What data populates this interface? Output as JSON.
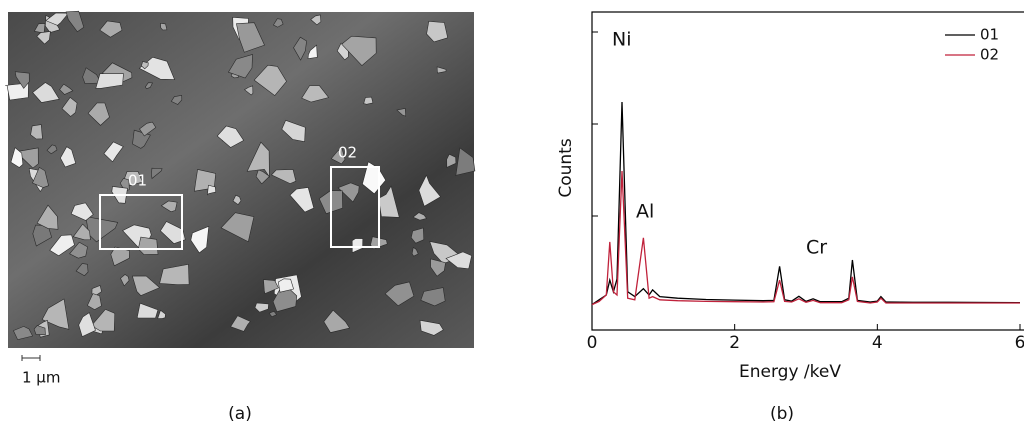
{
  "figure": {
    "panel_a": {
      "regions": [
        "01",
        "02"
      ],
      "scale_bar": "1 μm",
      "caption": "(a)"
    },
    "panel_b": {
      "caption": "(b)"
    }
  },
  "chart_data": {
    "type": "line",
    "xlabel": "Energy /keV",
    "ylabel": "Counts",
    "annotations": [
      "Ni",
      "Al",
      "Cr"
    ],
    "x": [
      0,
      0.1,
      0.2,
      0.25,
      0.3,
      0.35,
      0.42,
      0.5,
      0.6,
      0.72,
      0.8,
      0.85,
      0.95,
      1.2,
      1.6,
      2.0,
      2.4,
      2.55,
      2.63,
      2.7,
      2.8,
      2.9,
      3.0,
      3.1,
      3.2,
      3.5,
      3.6,
      3.65,
      3.72,
      3.9,
      4.0,
      4.05,
      4.12,
      4.5,
      5.0,
      6.0
    ],
    "series": [
      {
        "name": "01",
        "color": "#000000",
        "values": [
          8,
          9.5,
          11,
          15.7,
          12,
          16,
          71.7,
          12,
          10.5,
          13,
          11,
          12.6,
          10.5,
          10,
          9.6,
          9.4,
          9.2,
          9.3,
          20,
          9.5,
          9.1,
          10.6,
          9,
          9.8,
          8.9,
          8.9,
          10,
          22,
          9.3,
          8.8,
          9.1,
          10.5,
          8.8,
          8.7,
          8.7,
          8.6
        ]
      },
      {
        "name": "02",
        "color": "#c0223b",
        "values": [
          8,
          9,
          11,
          27.7,
          12,
          11,
          50,
          10,
          9.5,
          29,
          10,
          10.5,
          9.5,
          9.2,
          9,
          8.9,
          8.8,
          8.9,
          15.7,
          9,
          8.8,
          9.8,
          8.7,
          9.3,
          8.6,
          8.6,
          9.5,
          16.7,
          9,
          8.5,
          8.8,
          10,
          8.5,
          8.5,
          8.5,
          8.5
        ]
      }
    ],
    "xlim": [
      0,
      6
    ],
    "xticks": [
      0,
      2,
      4,
      6
    ],
    "ylim": [
      0,
      100
    ],
    "legend": "upper right"
  }
}
